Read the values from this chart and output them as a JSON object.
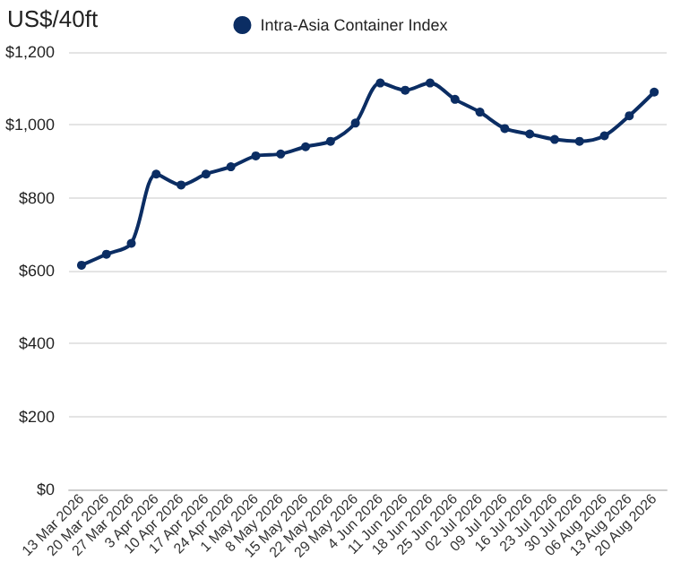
{
  "chart_data": {
    "type": "line",
    "ylabel": "US$/40ft",
    "categories": [
      "13 Mar 2026",
      "20 Mar 2026",
      "27 Mar 2026",
      "3 Apr 2026",
      "10 Apr 2026",
      "17 Apr 2026",
      "24 Apr 2026",
      "1 May 2026",
      "8 May 2026",
      "15 May 2026",
      "22 May 2026",
      "29 May 2026",
      "4 Jun 2026",
      "11 Jun 2026",
      "18 Jun 2026",
      "25 Jun 2026",
      "02 Jul 2026",
      "09 Jul 2026",
      "16 Jul 2026",
      "23 Jul 2026",
      "30 Jul 2026",
      "06 Aug 2026",
      "13 Aug 2026",
      "20 Aug 2026"
    ],
    "series": [
      {
        "name": "Intra-Asia Container Index",
        "color": "#0b2d63",
        "values": [
          615,
          645,
          675,
          865,
          835,
          865,
          885,
          915,
          920,
          940,
          955,
          1005,
          1115,
          1095,
          1115,
          1070,
          1035,
          990,
          975,
          960,
          955,
          970,
          1025,
          1090
        ]
      }
    ],
    "ylim": [
      0,
      1200
    ],
    "yticks": [
      {
        "value": 0,
        "label": "$0"
      },
      {
        "value": 200,
        "label": "$200"
      },
      {
        "value": 400,
        "label": "$400"
      },
      {
        "value": 600,
        "label": "$600"
      },
      {
        "value": 800,
        "label": "$800"
      },
      {
        "value": 1000,
        "label": "$1,000"
      },
      {
        "value": 1200,
        "label": "$1,200"
      }
    ],
    "grid": "y",
    "legend": "top",
    "marker": "circle",
    "line_style": "solid"
  }
}
